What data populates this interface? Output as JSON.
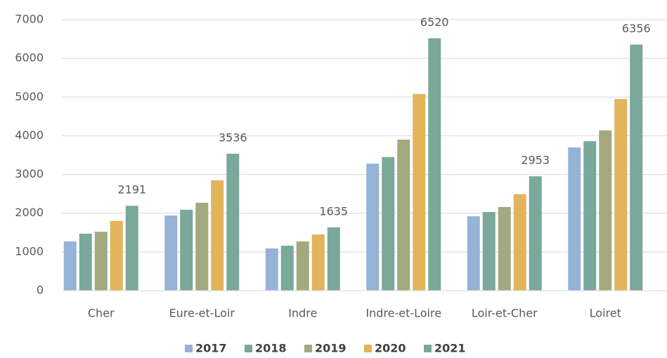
{
  "chart_data": {
    "type": "bar",
    "categories": [
      "Cher",
      "Eure-et-Loir",
      "Indre",
      "Indre-et-Loire",
      "Loir-et-Cher",
      "Loiret"
    ],
    "series": [
      {
        "name": "2017",
        "color": "#95b3d7",
        "values": [
          1270,
          1940,
          1090,
          3280,
          1920,
          3700
        ]
      },
      {
        "name": "2018",
        "color": "#7aa89a",
        "values": [
          1470,
          2090,
          1160,
          3450,
          2030,
          3860
        ]
      },
      {
        "name": "2019",
        "color": "#a3a97f",
        "values": [
          1520,
          2270,
          1270,
          3900,
          2160,
          4140
        ]
      },
      {
        "name": "2020",
        "color": "#e2b45c",
        "values": [
          1800,
          2850,
          1450,
          5080,
          2490,
          4950
        ]
      },
      {
        "name": "2021",
        "color": "#7aa89a",
        "values": [
          2191,
          3536,
          1635,
          6520,
          2953,
          6356
        ],
        "data_labels": true
      }
    ],
    "ylim": [
      0,
      7000
    ],
    "yticks": [
      0,
      1000,
      2000,
      3000,
      4000,
      5000,
      6000,
      7000
    ],
    "grid": true,
    "legend": "bottom"
  }
}
